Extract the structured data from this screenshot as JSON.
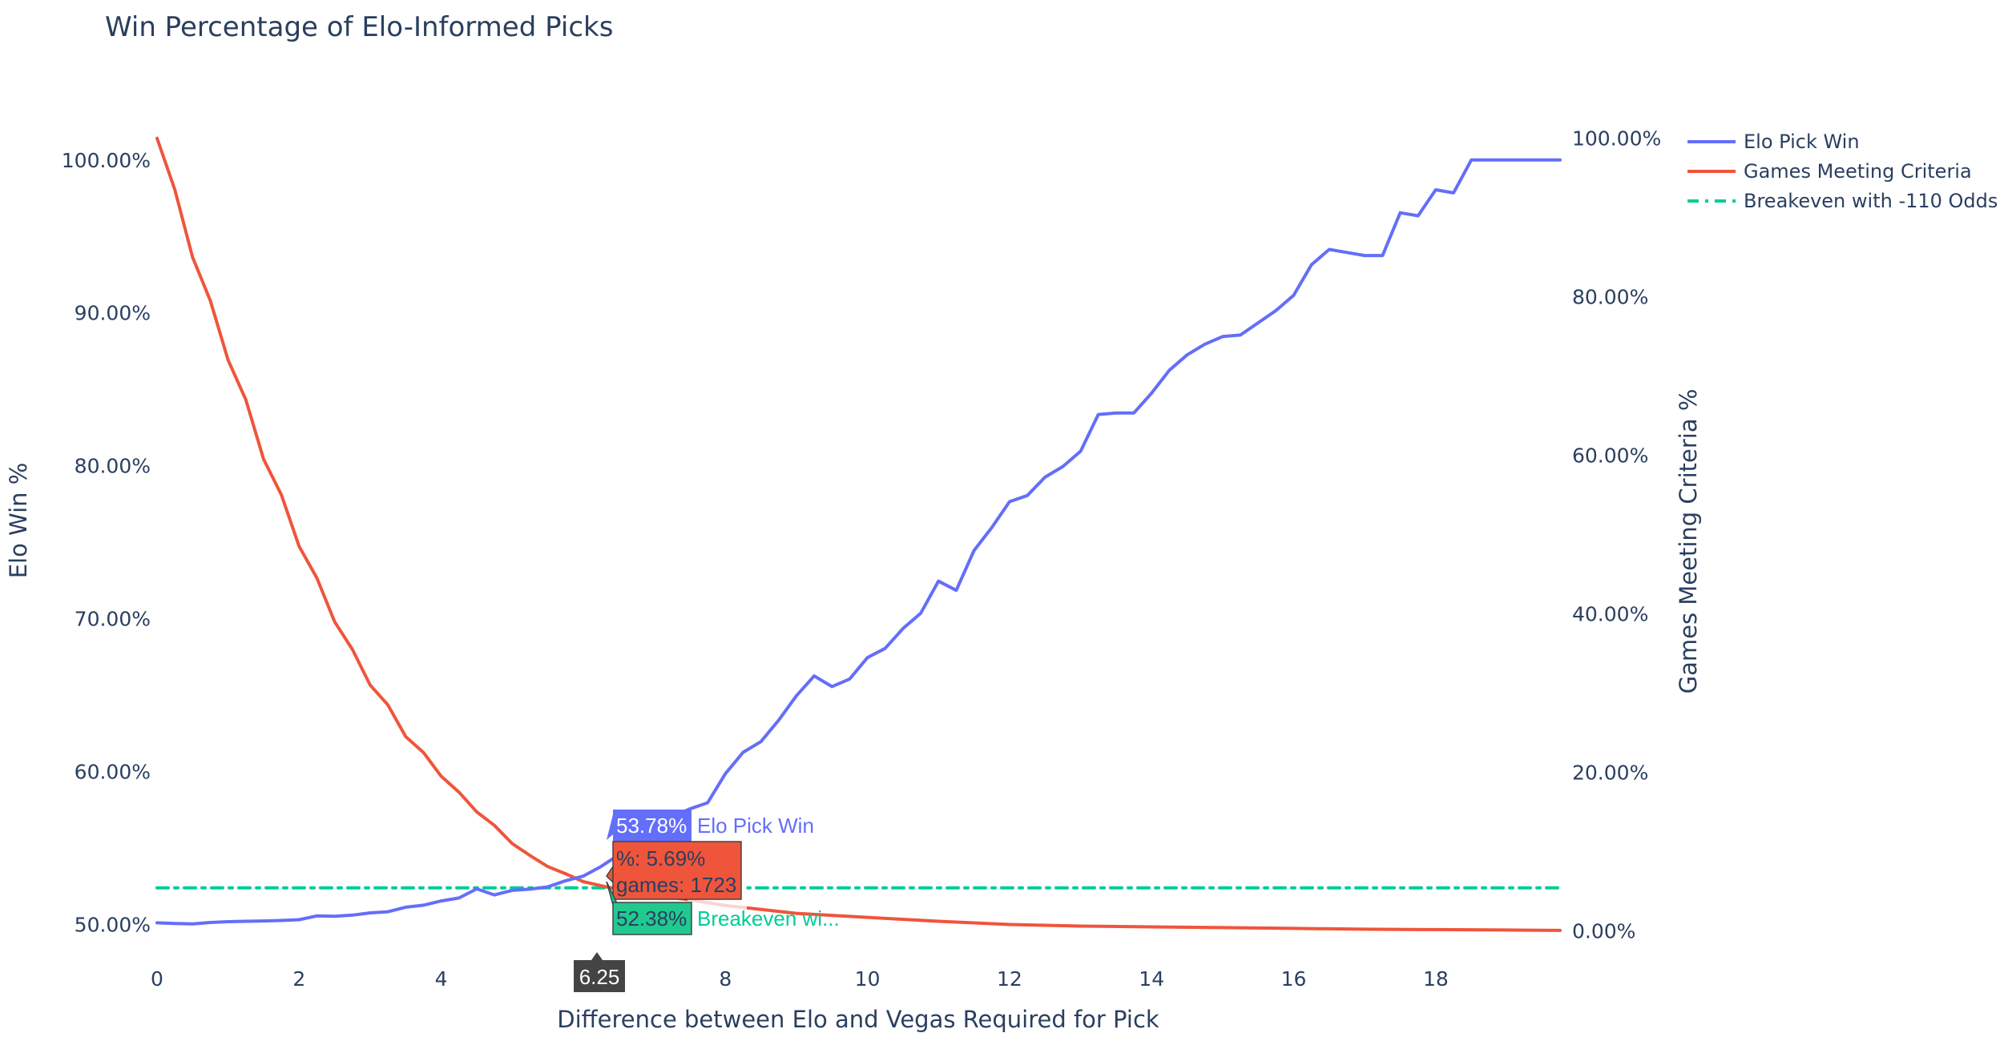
{
  "chart_data": {
    "type": "line",
    "title": "Win Percentage of Elo-Informed Picks",
    "xlabel": "Difference between Elo and Vegas Required for Pick",
    "ylabel": "Elo Win %",
    "y2label": "Games Meeting Criteria %",
    "xlim": [
      0,
      19.75
    ],
    "ylim": [
      0.475,
      1.035
    ],
    "y2lim": [
      -0.04,
      1.04
    ],
    "xticks": [
      0,
      2,
      4,
      6,
      8,
      10,
      12,
      14,
      16,
      18
    ],
    "xtick_labels": [
      "0",
      "2",
      "4",
      "6",
      "8",
      "10",
      "12",
      "14",
      "16",
      "18"
    ],
    "yticks": [
      0.5,
      0.6,
      0.7,
      0.8,
      0.9,
      1.0
    ],
    "ytick_labels": [
      "50.00%",
      "60.00%",
      "70.00%",
      "80.00%",
      "90.00%",
      "100.00%"
    ],
    "y2ticks": [
      0,
      0.2,
      0.4,
      0.6,
      0.8,
      1.0
    ],
    "y2tick_labels": [
      "0.00%",
      "20.00%",
      "40.00%",
      "60.00%",
      "80.00%",
      "100.00%"
    ],
    "grid": false,
    "legend_position": "top-right",
    "series": [
      {
        "name": "Elo Pick Win",
        "axis": "y",
        "color": "#636efa",
        "dash": "solid",
        "x": [
          0,
          0.25,
          0.5,
          0.75,
          1,
          1.25,
          1.5,
          1.75,
          2,
          2.25,
          2.5,
          2.75,
          3,
          3.25,
          3.5,
          3.75,
          4,
          4.25,
          4.5,
          4.75,
          5,
          5.25,
          5.5,
          5.75,
          6,
          6.25,
          6.5,
          6.75,
          7,
          7.25,
          7.5,
          7.75,
          8,
          8.25,
          8.5,
          8.75,
          9,
          9.25,
          9.5,
          9.75,
          10,
          10.25,
          10.5,
          10.75,
          11,
          11.25,
          11.5,
          11.75,
          12,
          12.25,
          12.5,
          12.75,
          13,
          13.25,
          13.5,
          13.75,
          14,
          14.25,
          14.5,
          14.75,
          15,
          15.25,
          15.5,
          15.75,
          16,
          16.25,
          16.5,
          16.75,
          17,
          17.25,
          17.5,
          17.75,
          18,
          18.25,
          18.5,
          18.75,
          19,
          19.25,
          19.5,
          19.75
        ],
        "values": [
          0.501,
          0.5005,
          0.5003,
          0.5012,
          0.5017,
          0.502,
          0.5022,
          0.5025,
          0.503,
          0.5055,
          0.5053,
          0.506,
          0.5075,
          0.5082,
          0.5112,
          0.5125,
          0.5153,
          0.5172,
          0.5232,
          0.5192,
          0.5222,
          0.523,
          0.5245,
          0.5285,
          0.5315,
          0.5378,
          0.5455,
          0.5525,
          0.5625,
          0.5705,
          0.5755,
          0.5795,
          0.5985,
          0.6125,
          0.6195,
          0.6335,
          0.6495,
          0.6625,
          0.6555,
          0.6605,
          0.6745,
          0.6805,
          0.6935,
          0.7035,
          0.7245,
          0.7185,
          0.7445,
          0.7595,
          0.7765,
          0.7805,
          0.7925,
          0.7995,
          0.8095,
          0.8335,
          0.8345,
          0.8345,
          0.8475,
          0.8625,
          0.8725,
          0.8795,
          0.8845,
          0.8855,
          0.8935,
          0.9015,
          0.9115,
          0.9315,
          0.9415,
          0.9395,
          0.9375,
          0.9375,
          0.9655,
          0.9635,
          0.9805,
          0.9785,
          1.0,
          1.0,
          1.0,
          1.0,
          1.0,
          1.0
        ]
      },
      {
        "name": "Games Meeting Criteria",
        "axis": "y2",
        "color": "#ef553b",
        "dash": "solid",
        "x": [
          0,
          0.25,
          0.5,
          0.75,
          1,
          1.25,
          1.5,
          1.75,
          2,
          2.25,
          2.5,
          2.75,
          3,
          3.25,
          3.5,
          3.75,
          4,
          4.25,
          4.5,
          4.75,
          5,
          5.25,
          5.5,
          5.75,
          6,
          6.25,
          6.5,
          7,
          7.5,
          8,
          9,
          10,
          11,
          12,
          13,
          14,
          15,
          16,
          17,
          18,
          19,
          19.75
        ],
        "values": [
          1.0,
          0.935,
          0.85,
          0.795,
          0.72,
          0.67,
          0.595,
          0.55,
          0.485,
          0.445,
          0.39,
          0.355,
          0.31,
          0.285,
          0.245,
          0.225,
          0.195,
          0.175,
          0.15,
          0.133,
          0.11,
          0.095,
          0.081,
          0.072,
          0.062,
          0.0569,
          0.052,
          0.045,
          0.039,
          0.032,
          0.022,
          0.017,
          0.012,
          0.008,
          0.006,
          0.005,
          0.004,
          0.003,
          0.002,
          0.0015,
          0.001,
          0.0005
        ]
      },
      {
        "name": "Breakeven with -110 Odds",
        "axis": "y",
        "color": "#00cc96",
        "dash": "dashdot",
        "x": [
          0,
          19.75
        ],
        "values": [
          0.5238,
          0.5238
        ]
      }
    ]
  },
  "hover": {
    "x_value": 6.25,
    "x_label": "6.25",
    "elo_value_label": "53.78%",
    "elo_name": "Elo Pick Win",
    "games_line1": "%: 5.69%",
    "games_line2": "games: 1723",
    "breakeven_value_label": "52.38%",
    "breakeven_name": "Breakeven wi..."
  }
}
